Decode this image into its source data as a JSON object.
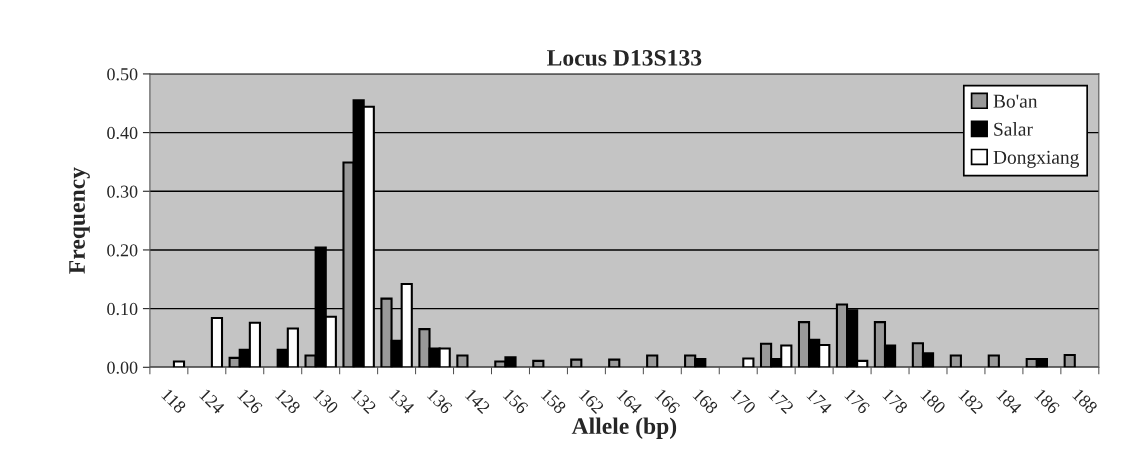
{
  "chart_data": {
    "type": "bar",
    "title": "Locus D13S133",
    "xlabel": "Allele (bp)",
    "ylabel": "Frequency",
    "categories": [
      "118",
      "124",
      "126",
      "128",
      "130",
      "132",
      "134",
      "136",
      "142",
      "156",
      "158",
      "162",
      "164",
      "166",
      "168",
      "170",
      "172",
      "174",
      "176",
      "178",
      "180",
      "182",
      "184",
      "186",
      "188"
    ],
    "series": [
      {
        "name": "Bo'an",
        "color": "#999999",
        "values": [
          null,
          null,
          0.016,
          null,
          0.02,
          0.349,
          0.117,
          0.065,
          0.02,
          0.01,
          0.011,
          0.013,
          0.013,
          0.02,
          0.02,
          null,
          0.04,
          0.077,
          0.107,
          0.077,
          0.041,
          0.02,
          0.02,
          0.014,
          0.021
        ]
      },
      {
        "name": "Salar",
        "color": "#000000",
        "values": [
          null,
          null,
          0.03,
          0.03,
          0.204,
          0.455,
          0.045,
          0.032,
          null,
          0.017,
          null,
          null,
          null,
          null,
          0.014,
          null,
          0.014,
          0.047,
          0.097,
          0.037,
          0.024,
          null,
          null,
          0.014,
          null
        ]
      },
      {
        "name": "Dongxiang",
        "color": "#ffffff",
        "values": [
          0.01,
          0.084,
          0.076,
          0.066,
          0.086,
          0.444,
          0.142,
          0.032,
          null,
          null,
          null,
          null,
          null,
          null,
          null,
          0.015,
          0.037,
          0.038,
          0.011,
          null,
          null,
          null,
          null,
          null,
          null
        ]
      }
    ],
    "ylim": [
      0,
      0.5
    ],
    "yticks": [
      {
        "value": 0,
        "label": "0.00"
      },
      {
        "value": 0.1,
        "label": "0.10"
      },
      {
        "value": 0.2,
        "label": "0.20"
      },
      {
        "value": 0.3,
        "label": "0.30"
      },
      {
        "value": 0.4,
        "label": "0.40"
      },
      {
        "value": 0.5,
        "label": "0.50"
      }
    ],
    "grid": "y",
    "legend": "top right"
  }
}
